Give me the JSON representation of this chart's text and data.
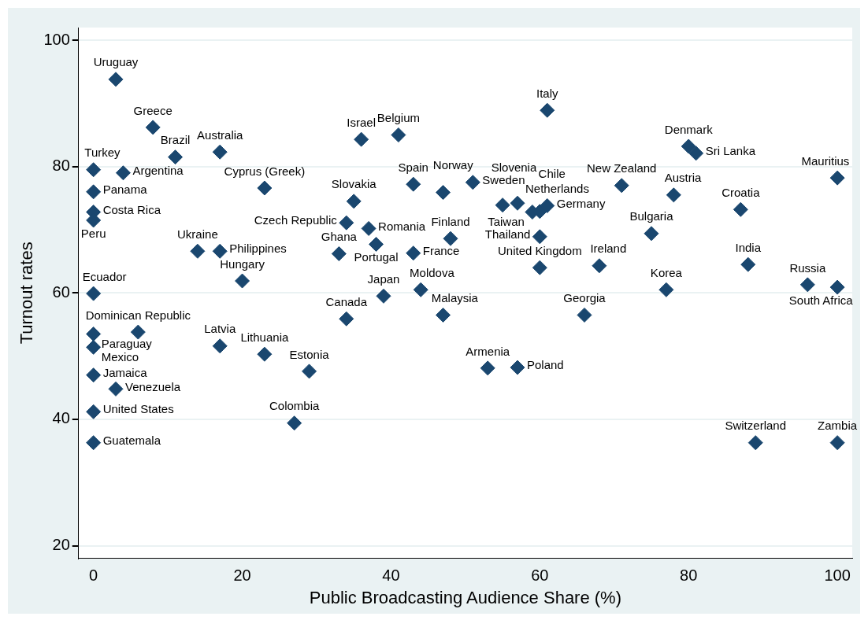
{
  "chart_data": {
    "type": "scatter",
    "xlabel": "Public Broadcasting Audience Share (%)",
    "ylabel": "Turnout rates",
    "color": "#1a476f",
    "marker": "diamond",
    "grid": "y",
    "xlim": [
      -2,
      102
    ],
    "ylim": [
      18,
      102
    ],
    "xticks": [
      0,
      20,
      40,
      60,
      80,
      100
    ],
    "yticks": [
      20,
      40,
      60,
      80,
      100
    ],
    "x": [
      3,
      8,
      11,
      17,
      0,
      4,
      0,
      0,
      0,
      23,
      14,
      17,
      20,
      0,
      6,
      0,
      0,
      0,
      3,
      0,
      0,
      17,
      23,
      29,
      27,
      36,
      41,
      61,
      43,
      47,
      51,
      35,
      34,
      37,
      38,
      33,
      43,
      48,
      55,
      57,
      59,
      60,
      61,
      60,
      60,
      39,
      44,
      34,
      47,
      53,
      57,
      66,
      68,
      77,
      71,
      78,
      75,
      80,
      81,
      87,
      88,
      100,
      96,
      100,
      89,
      100
    ],
    "values": [
      93.8,
      86.2,
      81.5,
      82.3,
      79.5,
      79,
      76,
      72.8,
      71.5,
      76.6,
      66.6,
      66.6,
      61.9,
      59.9,
      53.8,
      53.5,
      51.4,
      47,
      44.8,
      41.2,
      36.3,
      51.6,
      50.3,
      47.6,
      39.4,
      84.3,
      85,
      88.9,
      77.2,
      75.9,
      77.5,
      74.5,
      71.1,
      70.2,
      67.7,
      66.2,
      66.3,
      68.6,
      73.9,
      74.2,
      72.8,
      72.9,
      73.8,
      68.9,
      64,
      59.5,
      60.5,
      55.9,
      56.5,
      48.1,
      48.2,
      56.5,
      64.3,
      60.5,
      77,
      75.5,
      69.4,
      83.2,
      82.1,
      73.2,
      64.5,
      78.2,
      61.3,
      60.9,
      36.3,
      36.3
    ],
    "annotations": [
      {
        "text": "Uruguay",
        "x": 3,
        "y": 93.8
      },
      {
        "text": "Greece",
        "x": 8,
        "y": 86.2
      },
      {
        "text": "Brazil",
        "x": 11,
        "y": 81.5
      },
      {
        "text": "Australia",
        "x": 17,
        "y": 82.3
      },
      {
        "text": "Turkey",
        "x": 0,
        "y": 79.5
      },
      {
        "text": "Argentina",
        "x": 4,
        "y": 79
      },
      {
        "text": "Panama",
        "x": 0,
        "y": 76
      },
      {
        "text": "Costa Rica",
        "x": 0,
        "y": 72.8
      },
      {
        "text": "Peru",
        "x": 0,
        "y": 71.5
      },
      {
        "text": "Cyprus (Greek)",
        "x": 23,
        "y": 76.6
      },
      {
        "text": "Ukraine",
        "x": 14,
        "y": 66.6
      },
      {
        "text": "Philippines",
        "x": 17,
        "y": 66.6
      },
      {
        "text": "Hungary",
        "x": 20,
        "y": 61.9
      },
      {
        "text": "Ecuador",
        "x": 0,
        "y": 59.9
      },
      {
        "text": "Dominican Republic",
        "x": 6,
        "y": 53.8
      },
      {
        "text": "Paraguay",
        "x": 0,
        "y": 53.5
      },
      {
        "text": "Mexico",
        "x": 0,
        "y": 51.4
      },
      {
        "text": "Jamaica",
        "x": 0,
        "y": 47
      },
      {
        "text": "Venezuela",
        "x": 3,
        "y": 44.8
      },
      {
        "text": "United States",
        "x": 0,
        "y": 41.2
      },
      {
        "text": "Guatemala",
        "x": 0,
        "y": 36.3
      },
      {
        "text": "Latvia",
        "x": 17,
        "y": 51.6
      },
      {
        "text": "Lithuania",
        "x": 23,
        "y": 50.3
      },
      {
        "text": "Estonia",
        "x": 29,
        "y": 47.6
      },
      {
        "text": "Colombia",
        "x": 27,
        "y": 39.4
      },
      {
        "text": "Israel",
        "x": 36,
        "y": 84.3
      },
      {
        "text": "Belgium",
        "x": 41,
        "y": 85
      },
      {
        "text": "Italy",
        "x": 61,
        "y": 88.9
      },
      {
        "text": "Spain",
        "x": 43,
        "y": 77.2
      },
      {
        "text": "Norway",
        "x": 47,
        "y": 75.9
      },
      {
        "text": "Sweden",
        "x": 51,
        "y": 77.5
      },
      {
        "text": "Slovakia",
        "x": 35,
        "y": 74.5
      },
      {
        "text": "Czech Republic",
        "x": 34,
        "y": 71.1
      },
      {
        "text": "Romania",
        "x": 37,
        "y": 70.2
      },
      {
        "text": "Portugal",
        "x": 38,
        "y": 67.7
      },
      {
        "text": "Ghana",
        "x": 33,
        "y": 66.2
      },
      {
        "text": "France",
        "x": 43,
        "y": 66.3
      },
      {
        "text": "Finland",
        "x": 48,
        "y": 68.6
      },
      {
        "text": "Slovenia",
        "x": 55,
        "y": 73.9
      },
      {
        "text": "Netherlands",
        "x": 57,
        "y": 74.2
      },
      {
        "text": "Taiwan",
        "x": 59,
        "y": 72.8
      },
      {
        "text": "Chile",
        "x": 60,
        "y": 72.9
      },
      {
        "text": "Germany",
        "x": 61,
        "y": 73.8
      },
      {
        "text": "Thailand",
        "x": 60,
        "y": 68.9
      },
      {
        "text": "United Kingdom",
        "x": 60,
        "y": 64
      },
      {
        "text": "Japan",
        "x": 39,
        "y": 59.5
      },
      {
        "text": "Moldova",
        "x": 44,
        "y": 60.5
      },
      {
        "text": "Canada",
        "x": 34,
        "y": 55.9
      },
      {
        "text": "Malaysia",
        "x": 47,
        "y": 56.5
      },
      {
        "text": "Armenia",
        "x": 53,
        "y": 48.1
      },
      {
        "text": "Poland",
        "x": 57,
        "y": 48.2
      },
      {
        "text": "Georgia",
        "x": 66,
        "y": 56.5
      },
      {
        "text": "Ireland",
        "x": 68,
        "y": 64.3
      },
      {
        "text": "Korea",
        "x": 77,
        "y": 60.5
      },
      {
        "text": "New Zealand",
        "x": 71,
        "y": 77
      },
      {
        "text": "Austria",
        "x": 78,
        "y": 75.5
      },
      {
        "text": "Bulgaria",
        "x": 75,
        "y": 69.4
      },
      {
        "text": "Denmark",
        "x": 80,
        "y": 83.2
      },
      {
        "text": "Sri Lanka",
        "x": 81,
        "y": 82.1
      },
      {
        "text": "Croatia",
        "x": 87,
        "y": 73.2
      },
      {
        "text": "India",
        "x": 88,
        "y": 64.5
      },
      {
        "text": "Mauritius",
        "x": 100,
        "y": 78.2
      },
      {
        "text": "Russia",
        "x": 96,
        "y": 61.3
      },
      {
        "text": "South Africa",
        "x": 100,
        "y": 60.9
      },
      {
        "text": "Switzerland",
        "x": 89,
        "y": 36.3
      },
      {
        "text": "Zambia",
        "x": 100,
        "y": 36.3
      }
    ]
  }
}
